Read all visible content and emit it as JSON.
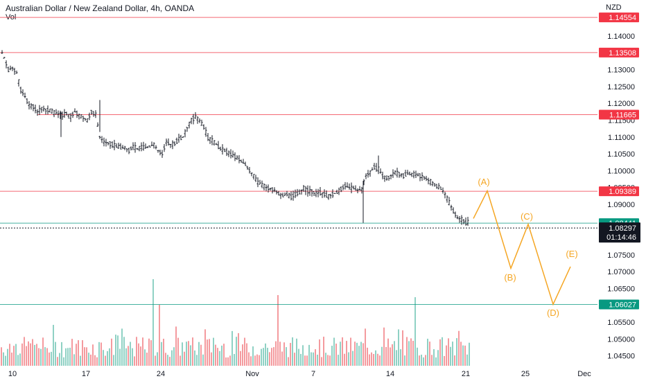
{
  "header": {
    "title": "Australian Dollar / New Zealand Dollar, 4h, OANDA",
    "volume_label": "Vol"
  },
  "axis": {
    "currency": "NZD",
    "y_ticks": [
      "1.14000",
      "1.13500",
      "1.13000",
      "1.12500",
      "1.12000",
      "1.11500",
      "1.11000",
      "1.10500",
      "1.10000",
      "1.09500",
      "1.09000",
      "1.08500",
      "1.08000",
      "1.07500",
      "1.07000",
      "1.06500",
      "1.06000",
      "1.05500",
      "1.05000",
      "1.04500"
    ],
    "x_ticks": [
      "10",
      "17",
      "24",
      "Nov",
      "7",
      "14",
      "21",
      "25",
      "Dec"
    ],
    "countdown": "01:14:46"
  },
  "colors": {
    "resistance": "#f23645",
    "support": "#089981",
    "current": "#131722",
    "wave": "#f5a623",
    "vol_up": "#8fd1c4",
    "vol_down": "#f49a9e",
    "candle": "#131722"
  },
  "chart_data": {
    "type": "ohlc",
    "symbol": "AUDNZD",
    "timeframe": "4h",
    "x_axis": [
      "10",
      "17",
      "24",
      "Nov",
      "7",
      "14",
      "21",
      "25",
      "Dec"
    ],
    "y_range": [
      1.042,
      1.147
    ],
    "horizontal_levels": [
      {
        "price": "1.14554",
        "value": 1.14554,
        "kind": "resistance"
      },
      {
        "price": "1.13508",
        "value": 1.13508,
        "kind": "resistance"
      },
      {
        "price": "1.11665",
        "value": 1.11665,
        "kind": "resistance"
      },
      {
        "price": "1.09389",
        "value": 1.09389,
        "kind": "resistance"
      },
      {
        "price": "1.08441",
        "value": 1.08441,
        "kind": "support"
      },
      {
        "price": "1.06027",
        "value": 1.06027,
        "kind": "support"
      }
    ],
    "current_price": {
      "price": "1.08297",
      "value": 1.08297
    },
    "price_path": [
      [
        0,
        1.1365
      ],
      [
        6,
        1.1335
      ],
      [
        12,
        1.13
      ],
      [
        18,
        1.1305
      ],
      [
        24,
        1.129
      ],
      [
        30,
        1.124
      ],
      [
        36,
        1.122
      ],
      [
        42,
        1.1195
      ],
      [
        48,
        1.119
      ],
      [
        54,
        1.1175
      ],
      [
        60,
        1.1185
      ],
      [
        66,
        1.118
      ],
      [
        72,
        1.118
      ],
      [
        78,
        1.1172
      ],
      [
        84,
        1.1168
      ],
      [
        90,
        1.1165
      ],
      [
        96,
        1.117
      ],
      [
        102,
        1.116
      ],
      [
        108,
        1.1175
      ],
      [
        114,
        1.1165
      ],
      [
        120,
        1.1158
      ],
      [
        126,
        1.115
      ],
      [
        132,
        1.1175
      ],
      [
        138,
        1.1168
      ],
      [
        144,
        1.11
      ],
      [
        150,
        1.1085
      ],
      [
        156,
        1.1082
      ],
      [
        162,
        1.1078
      ],
      [
        168,
        1.1072
      ],
      [
        174,
        1.107
      ],
      [
        180,
        1.1068
      ],
      [
        186,
        1.106
      ],
      [
        192,
        1.1072
      ],
      [
        198,
        1.1065
      ],
      [
        204,
        1.107
      ],
      [
        210,
        1.1068
      ],
      [
        216,
        1.1072
      ],
      [
        222,
        1.1078
      ],
      [
        228,
        1.106
      ],
      [
        234,
        1.105
      ],
      [
        240,
        1.1085
      ],
      [
        246,
        1.1078
      ],
      [
        252,
        1.108
      ],
      [
        258,
        1.1095
      ],
      [
        264,
        1.11
      ],
      [
        270,
        1.1128
      ],
      [
        276,
        1.115
      ],
      [
        282,
        1.116
      ],
      [
        288,
        1.1148
      ],
      [
        294,
        1.113
      ],
      [
        300,
        1.1098
      ],
      [
        306,
        1.109
      ],
      [
        312,
        1.1078
      ],
      [
        318,
        1.1065
      ],
      [
        324,
        1.106
      ],
      [
        330,
        1.1052
      ],
      [
        336,
        1.1045
      ],
      [
        342,
        1.1038
      ],
      [
        348,
        1.1028
      ],
      [
        354,
        1.1018
      ],
      [
        360,
        1.1
      ],
      [
        366,
        1.0985
      ],
      [
        372,
        1.0965
      ],
      [
        378,
        1.0958
      ],
      [
        384,
        1.095
      ],
      [
        390,
        1.0946
      ],
      [
        396,
        1.0942
      ],
      [
        402,
        1.0932
      ],
      [
        408,
        1.0925
      ],
      [
        414,
        1.093
      ],
      [
        420,
        1.0922
      ],
      [
        426,
        1.093
      ],
      [
        432,
        1.0935
      ],
      [
        438,
        1.0948
      ],
      [
        444,
        1.094
      ],
      [
        450,
        1.0938
      ],
      [
        456,
        1.0932
      ],
      [
        462,
        1.0935
      ],
      [
        468,
        1.093
      ],
      [
        474,
        1.0924
      ],
      [
        480,
        1.093
      ],
      [
        486,
        1.0935
      ],
      [
        492,
        1.0945
      ],
      [
        498,
        1.0955
      ],
      [
        504,
        1.095
      ],
      [
        510,
        1.0948
      ],
      [
        516,
        1.0942
      ],
      [
        522,
        1.0945
      ],
      [
        528,
        1.0985
      ],
      [
        534,
        1.0995
      ],
      [
        540,
        1.101
      ],
      [
        546,
        1.1005
      ],
      [
        552,
        1.0985
      ],
      [
        558,
        1.0975
      ],
      [
        564,
        1.0985
      ],
      [
        570,
        1.0995
      ],
      [
        576,
        1.099
      ],
      [
        582,
        1.0985
      ],
      [
        588,
        1.0992
      ],
      [
        594,
        1.099
      ],
      [
        600,
        1.0988
      ],
      [
        606,
        1.0985
      ],
      [
        612,
        1.098
      ],
      [
        618,
        1.0972
      ],
      [
        624,
        1.0962
      ],
      [
        630,
        1.0955
      ],
      [
        636,
        1.0948
      ],
      [
        642,
        1.093
      ],
      [
        648,
        1.0905
      ],
      [
        654,
        1.088
      ],
      [
        660,
        1.086
      ],
      [
        666,
        1.0855
      ],
      [
        672,
        1.0845
      ],
      [
        676,
        1.0848
      ]
    ],
    "volume_spikes": [
      [
        220,
        125
      ],
      [
        228,
        88
      ],
      [
        401,
        102
      ],
      [
        597,
        99
      ]
    ],
    "wave_projection": {
      "points": [
        [
          683,
          1.0858
        ],
        [
          703,
          1.094
        ],
        [
          737,
          1.071
        ],
        [
          762,
          1.0841
        ],
        [
          798,
          1.0603
        ],
        [
          823,
          1.0715
        ]
      ],
      "labels": [
        "(A)",
        "(B)",
        "(C)",
        "(D)",
        "(E)"
      ]
    }
  }
}
